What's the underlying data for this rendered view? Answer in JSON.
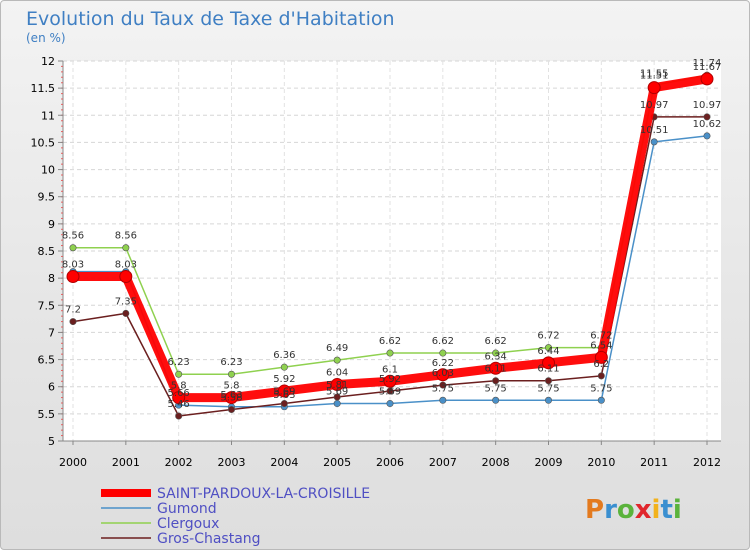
{
  "chart_data": {
    "type": "line",
    "title": "Evolution du Taux de Taxe d'Habitation",
    "subtitle": "(en %)",
    "xlabel": "",
    "ylabel": "",
    "categories": [
      "2000",
      "2001",
      "2002",
      "2003",
      "2004",
      "2005",
      "2006",
      "2007",
      "2008",
      "2009",
      "2010",
      "2011",
      "2012"
    ],
    "ylim": [
      5,
      12
    ],
    "yticks": [
      "5",
      "5.5",
      "6",
      "6.5",
      "7",
      "7.5",
      "8",
      "8.5",
      "9",
      "9.5",
      "10",
      "10.5",
      "11",
      "11.5",
      "12"
    ],
    "grid": true,
    "legend_position": "bottom-left",
    "series": [
      {
        "name": "Gumond",
        "color": "#4a90c8",
        "values": [
          8.12,
          8.12,
          5.66,
          5.63,
          5.63,
          5.69,
          5.69,
          5.75,
          5.75,
          5.75,
          5.75,
          10.51,
          10.62
        ],
        "labels": [
          "",
          "",
          "5.66",
          "5.63",
          "5.63",
          "5.69",
          "5.69",
          "5.75",
          "5.75",
          "5.75",
          "5.75",
          "10.51",
          "10.62"
        ]
      },
      {
        "name": "Clergoux",
        "color": "#8fd14f",
        "values": [
          8.56,
          8.56,
          6.23,
          6.23,
          6.36,
          6.49,
          6.62,
          6.62,
          6.62,
          6.72,
          6.72,
          11.55,
          11.74
        ],
        "labels": [
          "8.56",
          "8.56",
          "6.23",
          "6.23",
          "6.36",
          "6.49",
          "6.62",
          "6.62",
          "6.62",
          "6.72",
          "6.72",
          "11.55",
          "11.74"
        ]
      },
      {
        "name": "Gros-Chastang",
        "color": "#6b1f1f",
        "values": [
          7.2,
          7.35,
          5.46,
          5.58,
          5.69,
          5.81,
          5.92,
          6.03,
          6.11,
          6.11,
          6.2,
          10.97,
          10.97
        ],
        "labels": [
          "7.2",
          "7.35",
          "5.46",
          "5.58",
          "5.69",
          "5.81",
          "5.92",
          "6.03",
          "6.11",
          "6.11",
          "6.2",
          "10.97",
          "10.97"
        ]
      },
      {
        "name": "SAINT-PARDOUX-LA-CROISILLE",
        "color": "#ff0000",
        "values": [
          8.03,
          8.03,
          5.8,
          5.8,
          5.92,
          6.04,
          6.1,
          6.22,
          6.34,
          6.44,
          6.54,
          11.51,
          11.67
        ],
        "labels": [
          "8.03",
          "8.03",
          "5.8",
          "5.8",
          "5.92",
          "6.04",
          "6.1",
          "6.22",
          "6.34",
          "6.44",
          "6.54",
          "11.51",
          "11.67"
        ]
      }
    ],
    "legend": [
      {
        "name": "SAINT-PARDOUX-LA-CROISILLE",
        "color": "#ff0000"
      },
      {
        "name": "Gumond",
        "color": "#4a90c8"
      },
      {
        "name": "Clergoux",
        "color": "#8fd14f"
      },
      {
        "name": "Gros-Chastang",
        "color": "#6b1f1f"
      }
    ]
  },
  "logo": {
    "text": "Proxiti",
    "letter_colors": [
      "#e37a1e",
      "#3a8fd0",
      "#5bb33c",
      "#e0262c",
      "#f2b21c",
      "#3a8fd0",
      "#5bb33c"
    ]
  }
}
